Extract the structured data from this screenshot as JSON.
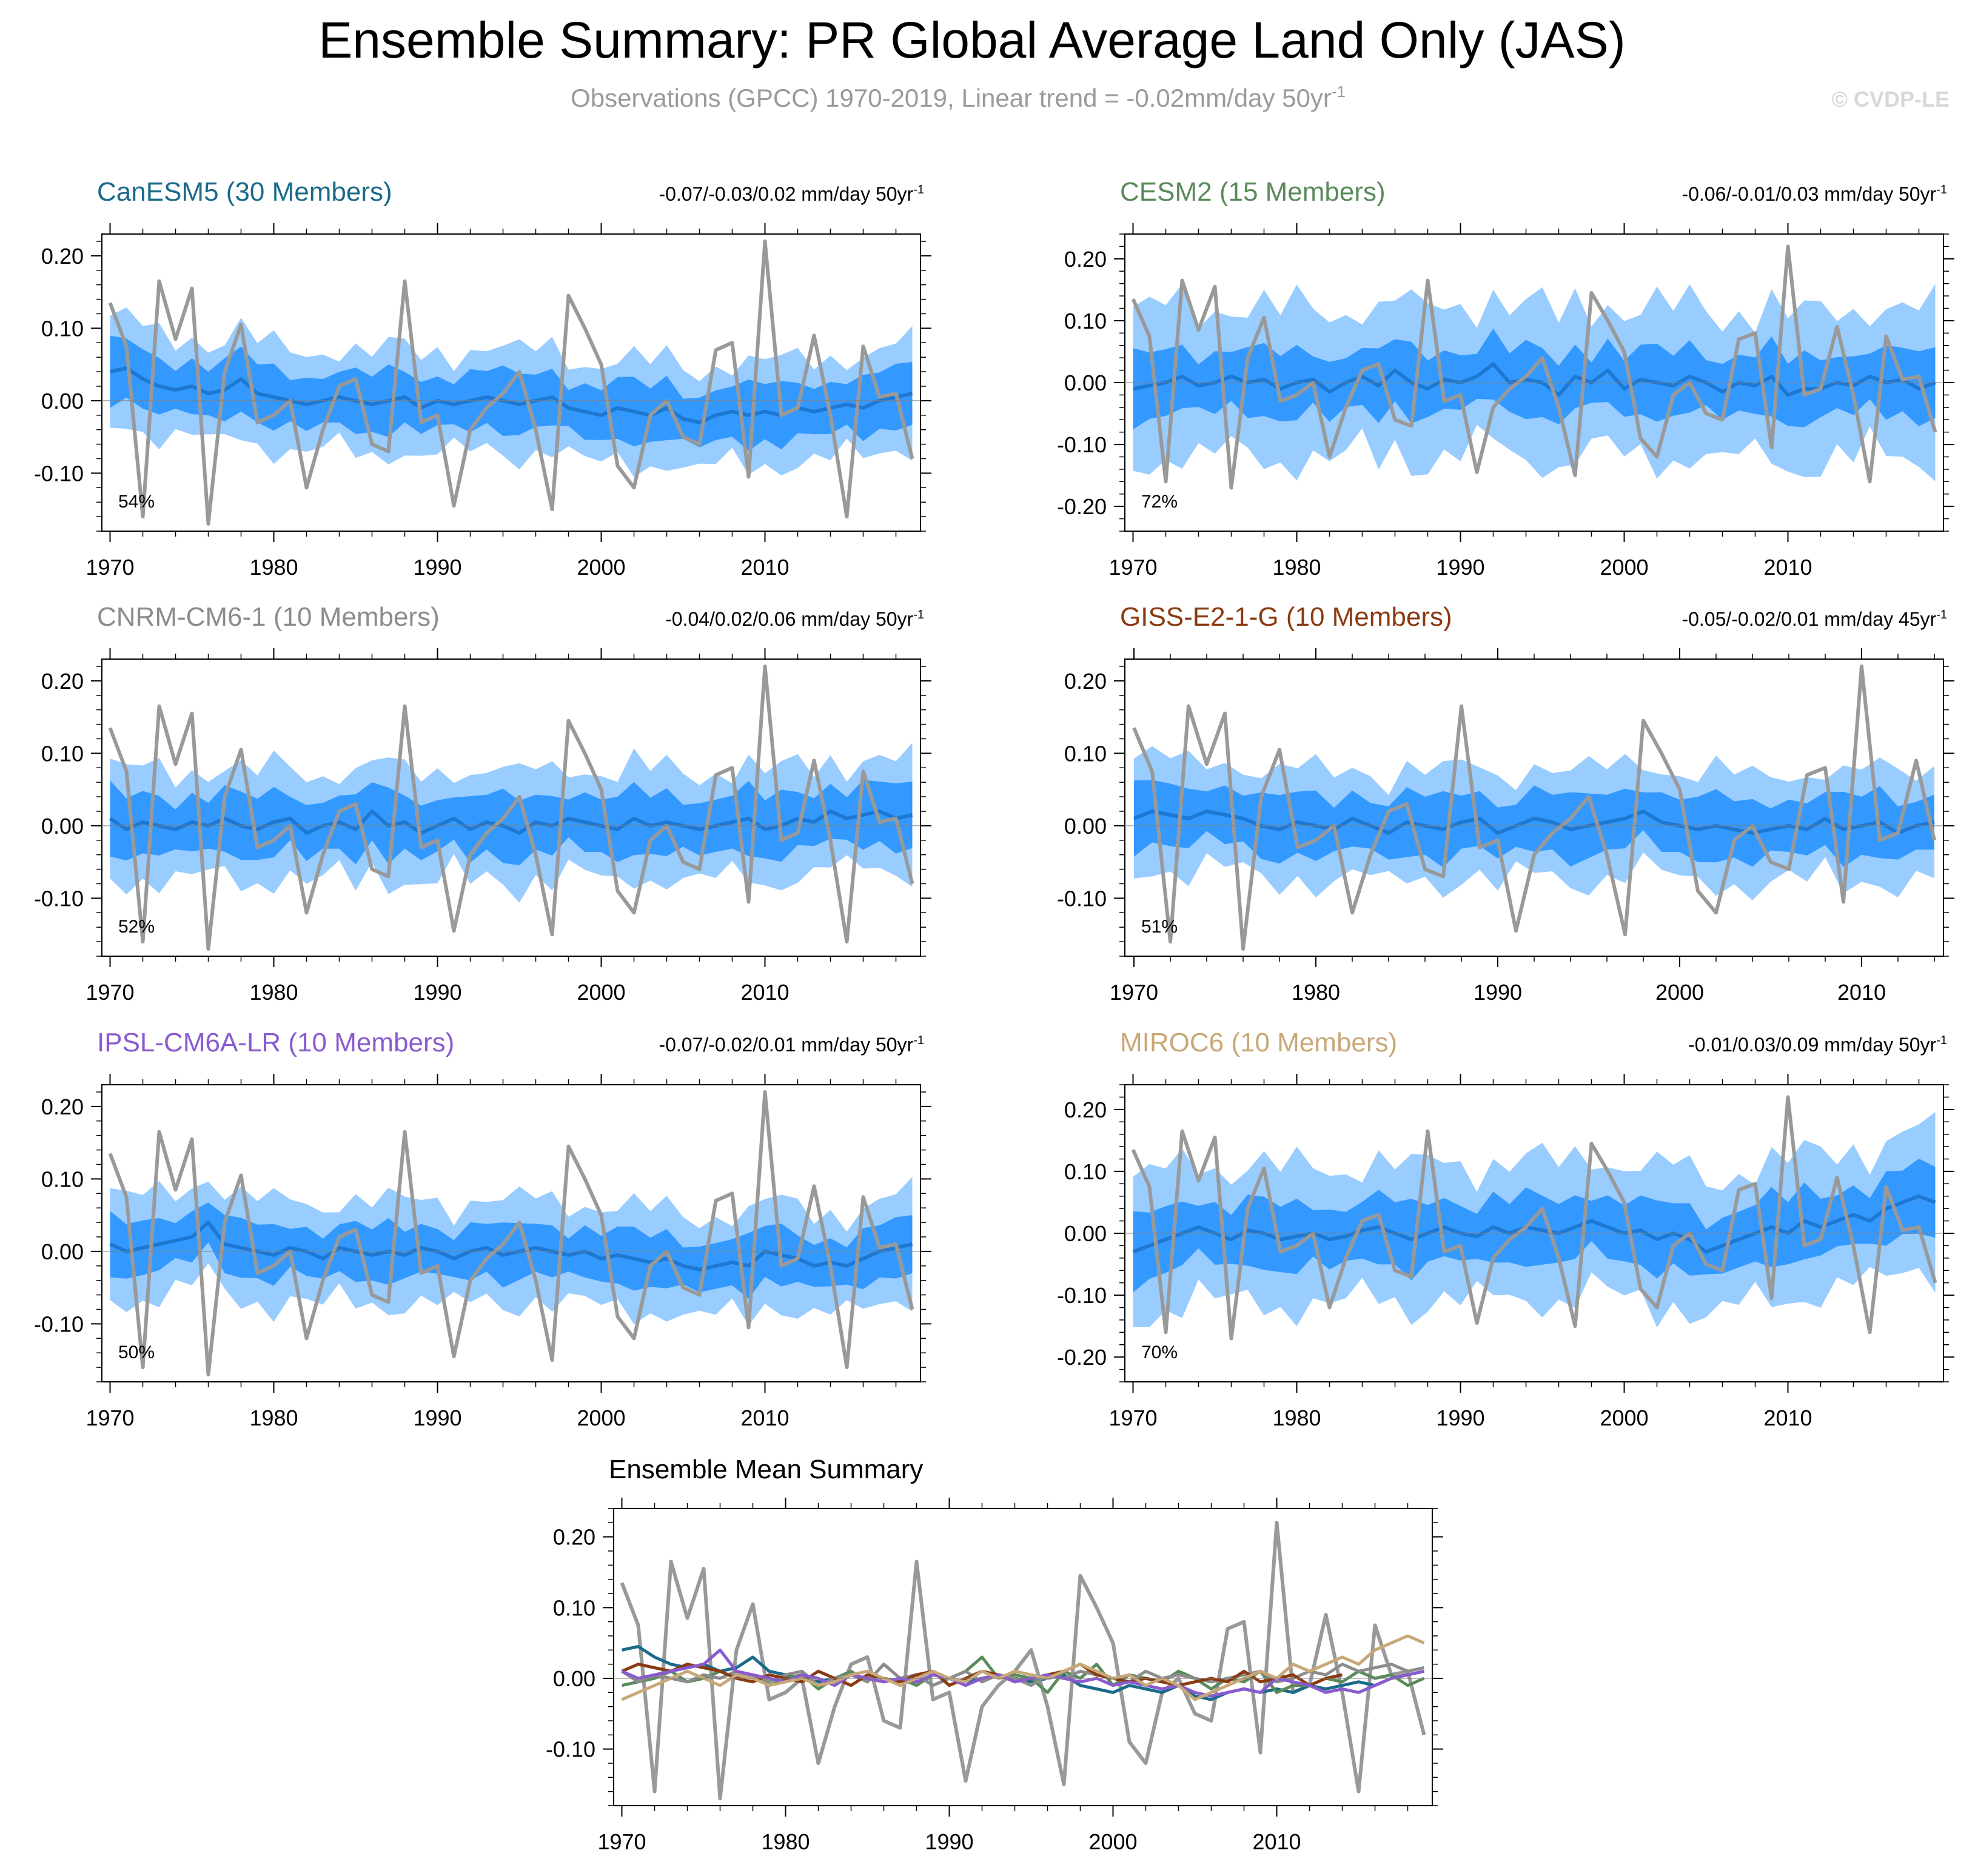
{
  "header": {
    "title": "Ensemble Summary: PR Global Average Land Only (JAS)",
    "subtitle": "Observations (GPCC) 1970-2019, Linear trend = -0.02mm/day 50yr",
    "subtitle_sup": "-1",
    "watermark": "© CVDP-LE"
  },
  "colors": {
    "observations": "#999999",
    "ensemble_mean": "#1e78d2",
    "inner_spread": "#3399ff",
    "outer_spread": "#99ccff"
  },
  "chart_data": [
    {
      "id": "canesm5",
      "type": "line",
      "title": "CanESM5 (30 Members)",
      "title_color": "#1a6a8a",
      "range_text": "-0.07/-0.03/0.02 mm/day 50yr",
      "range_sup": "-1",
      "percent": "54%",
      "x_range": [
        1969.5,
        2019.5
      ],
      "ylim": [
        -0.18,
        0.23
      ],
      "yticks": [
        "0.20",
        "0.10",
        "0.00",
        "-0.10"
      ],
      "ytick_values": [
        0.2,
        0.1,
        0.0,
        -0.1
      ],
      "xticks": [
        "1970",
        "1980",
        "1990",
        "2000",
        "2010"
      ],
      "mean_first_year": 1970,
      "mean": [
        0.04,
        0.045,
        0.03,
        0.02,
        0.015,
        0.02,
        0.01,
        0.015,
        0.03,
        0.01,
        0.005,
        0.0,
        -0.005,
        0.0,
        0.005,
        0.0,
        -0.005,
        0.0,
        0.005,
        -0.01,
        0.0,
        -0.005,
        0.0,
        0.005,
        0.0,
        -0.005,
        0.0,
        0.005,
        -0.01,
        -0.015,
        -0.02,
        -0.01,
        -0.015,
        -0.02,
        -0.01,
        -0.025,
        -0.03,
        -0.02,
        -0.015,
        -0.02,
        -0.015,
        -0.02,
        -0.01,
        -0.015,
        -0.01,
        -0.005,
        -0.01,
        0.0,
        0.005,
        0.01
      ],
      "inner_half": 0.038,
      "outer_half": 0.07
    },
    {
      "id": "cesm2",
      "type": "line",
      "title": "CESM2 (15 Members)",
      "title_color": "#5a8a5a",
      "range_text": "-0.06/-0.01/0.03 mm/day 50yr",
      "range_sup": "-1",
      "percent": "72%",
      "x_range": [
        1969.5,
        2019.5
      ],
      "ylim": [
        -0.24,
        0.24
      ],
      "yticks": [
        "0.20",
        "0.10",
        "0.00",
        "-0.10",
        "-0.20"
      ],
      "ytick_values": [
        0.2,
        0.1,
        0.0,
        -0.1,
        -0.2
      ],
      "xticks": [
        "1970",
        "1980",
        "1990",
        "2000",
        "2010"
      ],
      "mean_first_year": 1970,
      "mean": [
        -0.01,
        -0.005,
        0.0,
        0.01,
        -0.005,
        0.0,
        0.01,
        0.0,
        0.005,
        -0.01,
        0.0,
        0.005,
        -0.015,
        0.0,
        0.01,
        -0.005,
        0.02,
        0.0,
        -0.01,
        0.005,
        0.0,
        0.01,
        0.03,
        0.0,
        0.005,
        0.0,
        -0.02,
        0.01,
        0.0,
        0.02,
        -0.01,
        0.005,
        0.0,
        -0.005,
        0.01,
        0.0,
        -0.015,
        0.0,
        -0.005,
        0.01,
        -0.02,
        -0.01,
        -0.01,
        0.0,
        -0.005,
        0.01,
        0.0,
        0.005,
        -0.01,
        0.0
      ],
      "inner_half": 0.05,
      "outer_half": 0.12
    },
    {
      "id": "cnrm",
      "type": "line",
      "title": "CNRM-CM6-1 (10 Members)",
      "title_color": "#8c8c8c",
      "range_text": "-0.04/0.02/0.06 mm/day 50yr",
      "range_sup": "-1",
      "percent": "52%",
      "x_range": [
        1969.5,
        2019.5
      ],
      "ylim": [
        -0.18,
        0.23
      ],
      "yticks": [
        "0.20",
        "0.10",
        "0.00",
        "-0.10"
      ],
      "ytick_values": [
        0.2,
        0.1,
        0.0,
        -0.1
      ],
      "xticks": [
        "1970",
        "1980",
        "1990",
        "2000",
        "2010"
      ],
      "mean_first_year": 1970,
      "mean": [
        0.01,
        -0.005,
        0.005,
        0.0,
        -0.005,
        0.005,
        0.0,
        0.01,
        0.0,
        -0.005,
        0.005,
        0.01,
        -0.01,
        0.0,
        0.005,
        -0.005,
        0.02,
        0.0,
        0.005,
        -0.01,
        0.0,
        0.01,
        -0.005,
        0.005,
        0.0,
        -0.01,
        0.005,
        0.0,
        0.01,
        0.005,
        0.0,
        -0.005,
        0.01,
        0.0,
        0.005,
        0.0,
        -0.005,
        0.0,
        0.005,
        0.01,
        -0.005,
        0.0,
        0.01,
        0.005,
        0.02,
        0.01,
        0.015,
        0.02,
        0.01,
        0.015
      ],
      "inner_half": 0.04,
      "outer_half": 0.075
    },
    {
      "id": "giss",
      "type": "line",
      "title": "GISS-E2-1-G (10 Members)",
      "title_color": "#8a3a10",
      "range_text": "-0.05/-0.02/0.01 mm/day 45yr",
      "range_sup": "-1",
      "percent": "51%",
      "x_range": [
        1969.5,
        2014.5
      ],
      "ylim": [
        -0.18,
        0.23
      ],
      "yticks": [
        "0.20",
        "0.10",
        "0.00",
        "-0.10"
      ],
      "ytick_values": [
        0.2,
        0.1,
        0.0,
        -0.1
      ],
      "xticks": [
        "1970",
        "1980",
        "1990",
        "2000",
        "2010"
      ],
      "mean_first_year": 1970,
      "mean": [
        0.01,
        0.02,
        0.015,
        0.01,
        0.02,
        0.015,
        0.01,
        0.0,
        -0.005,
        0.005,
        0.0,
        -0.005,
        0.01,
        0.0,
        -0.01,
        0.005,
        0.0,
        -0.005,
        0.005,
        0.01,
        -0.01,
        0.0,
        0.01,
        0.005,
        -0.005,
        0.0,
        0.005,
        0.01,
        0.02,
        0.005,
        0.0,
        -0.005,
        0.0,
        -0.005,
        -0.01,
        -0.005,
        0.0,
        -0.005,
        0.01,
        -0.005,
        0.0,
        0.005,
        -0.01,
        0.0,
        0.005
      ],
      "inner_half": 0.04,
      "outer_half": 0.075
    },
    {
      "id": "ipsl",
      "type": "line",
      "title": "IPSL-CM6A-LR (10 Members)",
      "title_color": "#8a5ad0",
      "range_text": "-0.07/-0.02/0.01 mm/day 50yr",
      "range_sup": "-1",
      "percent": "50%",
      "x_range": [
        1969.5,
        2019.5
      ],
      "ylim": [
        -0.18,
        0.23
      ],
      "yticks": [
        "0.20",
        "0.10",
        "0.00",
        "-0.10"
      ],
      "ytick_values": [
        0.2,
        0.1,
        0.0,
        -0.1
      ],
      "xticks": [
        "1970",
        "1980",
        "1990",
        "2000",
        "2010"
      ],
      "mean_first_year": 1970,
      "mean": [
        0.01,
        0.0,
        0.005,
        0.01,
        0.015,
        0.02,
        0.04,
        0.01,
        0.005,
        0.0,
        -0.005,
        0.005,
        0.0,
        -0.01,
        0.005,
        0.0,
        -0.005,
        0.0,
        -0.005,
        0.005,
        0.0,
        -0.01,
        0.0,
        0.005,
        -0.005,
        0.0,
        0.005,
        0.0,
        -0.005,
        0.0,
        -0.01,
        -0.005,
        -0.01,
        -0.015,
        -0.01,
        -0.02,
        -0.025,
        -0.02,
        -0.015,
        -0.02,
        0.0,
        -0.005,
        -0.01,
        -0.02,
        -0.015,
        -0.02,
        -0.01,
        0.0,
        0.005,
        0.01
      ],
      "inner_half": 0.035,
      "outer_half": 0.07
    },
    {
      "id": "miroc6",
      "type": "line",
      "title": "MIROC6 (10 Members)",
      "title_color": "#c8a878",
      "range_text": "-0.01/0.03/0.09 mm/day 50yr",
      "range_sup": "-1",
      "percent": "70%",
      "x_range": [
        1969.5,
        2019.5
      ],
      "ylim": [
        -0.24,
        0.24
      ],
      "yticks": [
        "0.20",
        "0.10",
        "0.00",
        "-0.10",
        "-0.20"
      ],
      "ytick_values": [
        0.2,
        0.1,
        0.0,
        -0.1,
        -0.2
      ],
      "xticks": [
        "1970",
        "1980",
        "1990",
        "2000",
        "2010"
      ],
      "mean_first_year": 1970,
      "mean": [
        -0.03,
        -0.02,
        -0.01,
        0.0,
        0.01,
        0.0,
        -0.01,
        0.005,
        0.0,
        -0.01,
        -0.005,
        0.0,
        -0.01,
        -0.005,
        0.005,
        0.01,
        0.0,
        -0.01,
        0.0,
        0.01,
        0.0,
        -0.005,
        0.01,
        0.0,
        0.01,
        0.005,
        0.0,
        0.01,
        0.02,
        0.01,
        0.0,
        0.005,
        -0.01,
        0.0,
        -0.01,
        -0.03,
        -0.02,
        -0.01,
        0.0,
        0.01,
        0.0,
        0.02,
        0.01,
        0.02,
        0.03,
        0.02,
        0.04,
        0.05,
        0.06,
        0.05
      ],
      "inner_half": 0.05,
      "outer_half": 0.11
    },
    {
      "id": "ensemble_mean_summary",
      "type": "line",
      "title": "Ensemble Mean Summary",
      "x_range": [
        1969.5,
        2019.5
      ],
      "ylim": [
        -0.18,
        0.24
      ],
      "yticks": [
        "0.20",
        "0.10",
        "0.00",
        "-0.10"
      ],
      "ytick_values": [
        0.2,
        0.1,
        0.0,
        -0.1
      ],
      "xticks": [
        "1970",
        "1980",
        "1990",
        "2000",
        "2010"
      ],
      "series": [
        {
          "name": "CanESM5",
          "color": "#1a6a8a",
          "ref": "canesm5"
        },
        {
          "name": "CESM2",
          "color": "#5a8a5a",
          "ref": "cesm2"
        },
        {
          "name": "CNRM-CM6-1",
          "color": "#8c8c8c",
          "ref": "cnrm"
        },
        {
          "name": "GISS-E2-1-G",
          "color": "#8a3a10",
          "ref": "giss"
        },
        {
          "name": "IPSL-CM6A-LR",
          "color": "#8a5ad0",
          "ref": "ipsl"
        },
        {
          "name": "MIROC6",
          "color": "#c8a878",
          "ref": "miroc6"
        }
      ]
    }
  ],
  "observations": {
    "name": "GPCC",
    "first_year": 1970,
    "values": [
      0.135,
      0.075,
      -0.16,
      0.165,
      0.085,
      0.155,
      -0.17,
      0.04,
      0.105,
      -0.03,
      -0.02,
      0.0,
      -0.12,
      -0.04,
      0.02,
      0.03,
      -0.06,
      -0.07,
      0.165,
      -0.03,
      -0.02,
      -0.145,
      -0.04,
      -0.01,
      0.01,
      0.04,
      -0.04,
      -0.15,
      0.145,
      0.1,
      0.05,
      -0.09,
      -0.12,
      -0.02,
      0.0,
      -0.05,
      -0.06,
      0.07,
      0.08,
      -0.105,
      0.22,
      -0.02,
      -0.01,
      0.09,
      -0.02,
      -0.16,
      0.075,
      0.005,
      0.01,
      -0.08
    ]
  }
}
